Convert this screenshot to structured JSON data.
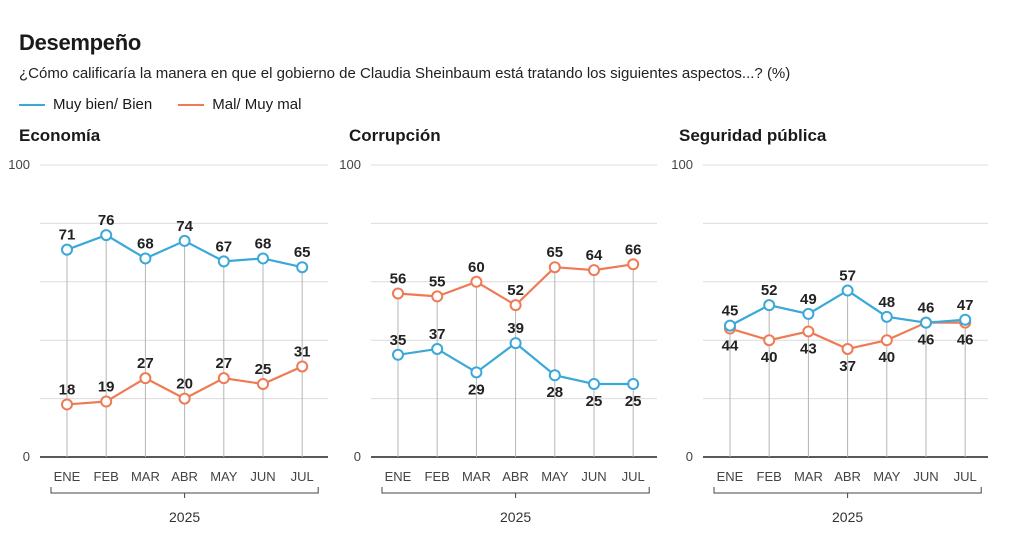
{
  "header": {
    "title": "Desempeño",
    "subtitle": "¿Cómo calificaría la manera en que el gobierno de Claudia Sheinbaum está tratando los siguientes aspectos...?  (%)"
  },
  "legend": [
    {
      "label": "Muy bien/ Bien",
      "color": "#3aa8d8"
    },
    {
      "label": "Mal/ Muy mal",
      "color": "#ee7b55"
    }
  ],
  "chart_data": [
    {
      "type": "line",
      "title": "Economía",
      "categories": [
        "ENE",
        "FEB",
        "MAR",
        "ABR",
        "MAY",
        "JUN",
        "JUL"
      ],
      "year_label": "2025",
      "ylim": [
        0,
        100
      ],
      "y_ticks": [
        "0",
        "100"
      ],
      "series": [
        {
          "name": "Muy bien/ Bien",
          "color": "#3aa8d8",
          "values": [
            71,
            76,
            68,
            74,
            67,
            68,
            65
          ]
        },
        {
          "name": "Mal/ Muy mal",
          "color": "#ee7b55",
          "values": [
            18,
            19,
            27,
            20,
            27,
            25,
            31
          ]
        }
      ]
    },
    {
      "type": "line",
      "title": "Corrupción",
      "categories": [
        "ENE",
        "FEB",
        "MAR",
        "ABR",
        "MAY",
        "JUN",
        "JUL"
      ],
      "year_label": "2025",
      "ylim": [
        0,
        100
      ],
      "y_ticks": [
        "0",
        "100"
      ],
      "series": [
        {
          "name": "Muy bien/ Bien",
          "color": "#3aa8d8",
          "values": [
            35,
            37,
            29,
            39,
            28,
            25,
            25
          ]
        },
        {
          "name": "Mal/ Muy mal",
          "color": "#ee7b55",
          "values": [
            56,
            55,
            60,
            52,
            65,
            64,
            66
          ]
        }
      ]
    },
    {
      "type": "line",
      "title": "Seguridad pública",
      "categories": [
        "ENE",
        "FEB",
        "MAR",
        "ABR",
        "MAY",
        "JUN",
        "JUL"
      ],
      "year_label": "2025",
      "ylim": [
        0,
        100
      ],
      "y_ticks": [
        "0",
        "100"
      ],
      "series": [
        {
          "name": "Muy bien/ Bien",
          "color": "#3aa8d8",
          "values": [
            45,
            52,
            49,
            57,
            48,
            46,
            47
          ]
        },
        {
          "name": "Mal/ Muy mal",
          "color": "#ee7b55",
          "values": [
            44,
            40,
            43,
            37,
            40,
            46,
            46
          ]
        }
      ]
    }
  ]
}
